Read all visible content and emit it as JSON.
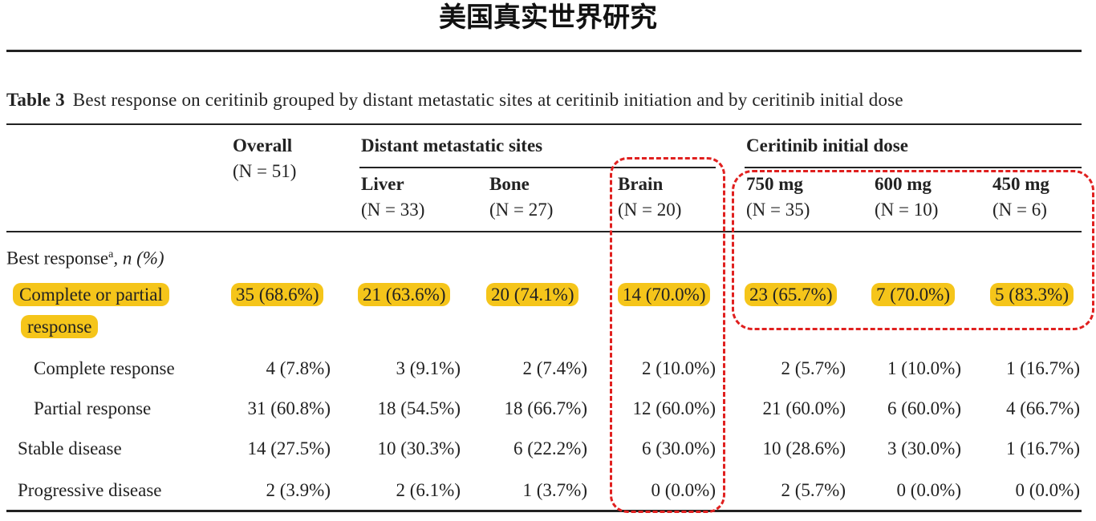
{
  "heading": "美国真实世界研究",
  "caption": {
    "label": "Table 3",
    "text": "Best response on ceritinib grouped by distant metastatic sites at ceritinib initiation and by ceritinib initial dose"
  },
  "header": {
    "overall": {
      "name": "Overall",
      "n": "(N = 51)"
    },
    "group_sites": "Distant metastatic sites",
    "group_dose": "Ceritinib initial dose",
    "liver": {
      "name": "Liver",
      "n": "(N = 33)"
    },
    "bone": {
      "name": "Bone",
      "n": "(N = 27)"
    },
    "brain": {
      "name": "Brain",
      "n": "(N = 20)"
    },
    "d750": {
      "name": "750 mg",
      "n": "(N = 35)"
    },
    "d600": {
      "name": "600 mg",
      "n": "(N = 10)"
    },
    "d450": {
      "name": "450 mg",
      "n": "(N = 6)"
    }
  },
  "section_label": "Best response",
  "section_sup": "a",
  "section_suffix": ", n (%)",
  "rows": [
    {
      "label": "Complete or partial",
      "label2": "response",
      "values": [
        "35 (68.6%)",
        "21 (63.6%)",
        "20 (74.1%)",
        "14 (70.0%)",
        "23 (65.7%)",
        "7 (70.0%)",
        "5 (83.3%)"
      ]
    },
    {
      "label": "Complete response",
      "values": [
        "4 (7.8%)",
        "3 (9.1%)",
        "2 (7.4%)",
        "2 (10.0%)",
        "2 (5.7%)",
        "1 (10.0%)",
        "1 (16.7%)"
      ]
    },
    {
      "label": "Partial response",
      "values": [
        "31 (60.8%)",
        "18 (54.5%)",
        "18 (66.7%)",
        "12 (60.0%)",
        "21 (60.0%)",
        "6 (60.0%)",
        "4 (66.7%)"
      ]
    },
    {
      "label": "Stable disease",
      "values": [
        "14 (27.5%)",
        "10 (30.3%)",
        "6 (22.2%)",
        "6 (30.0%)",
        "10 (28.6%)",
        "3 (30.0%)",
        "1 (16.7%)"
      ]
    },
    {
      "label": "Progressive disease",
      "values": [
        "2 (3.9%)",
        "2 (6.1%)",
        "1 (3.7%)",
        "0 (0.0%)",
        "2 (5.7%)",
        "0 (0.0%)",
        "0 (0.0%)"
      ]
    }
  ],
  "colors": {
    "highlight": "#f5c51a",
    "dashed_box": "#e0201f"
  }
}
